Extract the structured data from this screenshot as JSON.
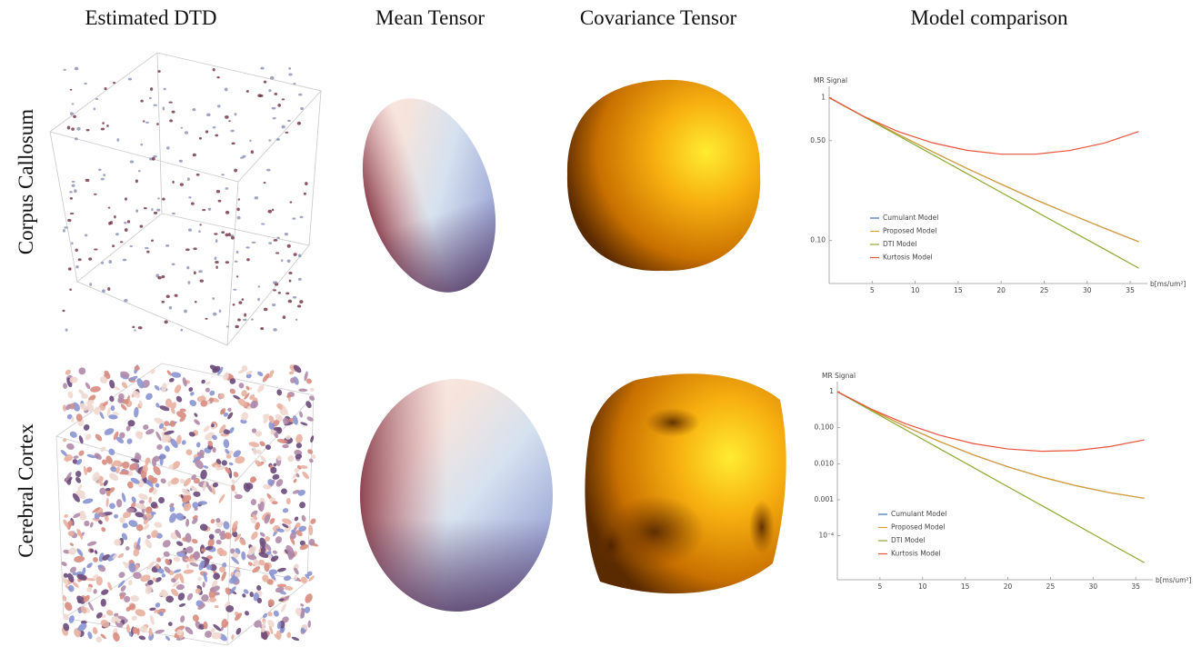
{
  "columns": [
    "Estimated DTD",
    "Mean Tensor",
    "Covariance Tensor",
    "Model comparison"
  ],
  "rows": [
    "Corpus Callosum",
    "Cerebral Cortex"
  ],
  "chart_data": [
    {
      "type": "line",
      "y_label": "MR Signal",
      "x_label": "b[ms/um²]",
      "log_y": true,
      "grid": false,
      "legend": "lower left",
      "x": [
        0,
        4,
        8,
        12,
        16,
        20,
        24,
        28,
        32,
        36
      ],
      "xlim": [
        0,
        37
      ],
      "ylim": [
        0.05,
        1.2
      ],
      "xticks": [
        5,
        10,
        15,
        20,
        25,
        30,
        35
      ],
      "yticks": [
        1,
        {
          "value": 0.5,
          "label": "0.50"
        },
        {
          "value": 0.1,
          "label": "0.10"
        }
      ],
      "series": [
        {
          "name": "Cumulant Model",
          "color": "#3d6fb5",
          "values": [
            1,
            0.74,
            0.554,
            0.419,
            0.32,
            0.248,
            0.193,
            0.153,
            0.122,
            0.098
          ]
        },
        {
          "name": "Proposed Model",
          "color": "#e0a030",
          "values": [
            1,
            0.74,
            0.554,
            0.419,
            0.32,
            0.248,
            0.193,
            0.153,
            0.122,
            0.098
          ]
        },
        {
          "name": "DTI Model",
          "color": "#8aaa30",
          "values": [
            1,
            0.737,
            0.543,
            0.4,
            0.295,
            0.217,
            0.16,
            0.118,
            0.087,
            0.064
          ]
        },
        {
          "name": "Kurtosis Model",
          "color": "#e8533a",
          "values": [
            1,
            0.739,
            0.58,
            0.483,
            0.428,
            0.402,
            0.402,
            0.427,
            0.481,
            0.58
          ]
        }
      ]
    },
    {
      "type": "line",
      "y_label": "MR Signal",
      "x_label": "b[ms/um²]",
      "log_y": true,
      "grid": false,
      "legend": "lower left",
      "x": [
        0,
        4,
        8,
        12,
        16,
        20,
        24,
        28,
        32,
        36
      ],
      "xlim": [
        0,
        37
      ],
      "ylim": [
        6e-06,
        1.9
      ],
      "xticks": [
        5,
        10,
        15,
        20,
        25,
        30,
        35
      ],
      "yticks": [
        1,
        {
          "value": 0.1,
          "label": "0.100"
        },
        {
          "value": 0.01,
          "label": "0.010"
        },
        {
          "value": 0.001,
          "label": "0.001"
        },
        {
          "value": 0.0001,
          "label": "10⁻⁴"
        }
      ],
      "series": [
        {
          "name": "Cumulant Model",
          "color": "#3d6fb5",
          "values": [
            1,
            0.312,
            0.108,
            0.0413,
            0.0175,
            0.0082,
            0.00426,
            0.00245,
            0.00156,
            0.0011
          ]
        },
        {
          "name": "Proposed Model",
          "color": "#e0a030",
          "values": [
            1,
            0.312,
            0.108,
            0.0413,
            0.0175,
            0.0082,
            0.00426,
            0.00245,
            0.00156,
            0.0011
          ]
        },
        {
          "name": "DTI Model",
          "color": "#8aaa30",
          "values": [
            1,
            0.297,
            0.088,
            0.0261,
            0.00776,
            0.0023,
            0.000685,
            0.000203,
            6e-05,
            1.8e-05
          ]
        },
        {
          "name": "Kurtosis Model",
          "color": "#e8533a",
          "values": [
            1,
            0.326,
            0.129,
            0.062,
            0.036,
            0.0257,
            0.0221,
            0.0233,
            0.03,
            0.046
          ]
        }
      ]
    }
  ]
}
